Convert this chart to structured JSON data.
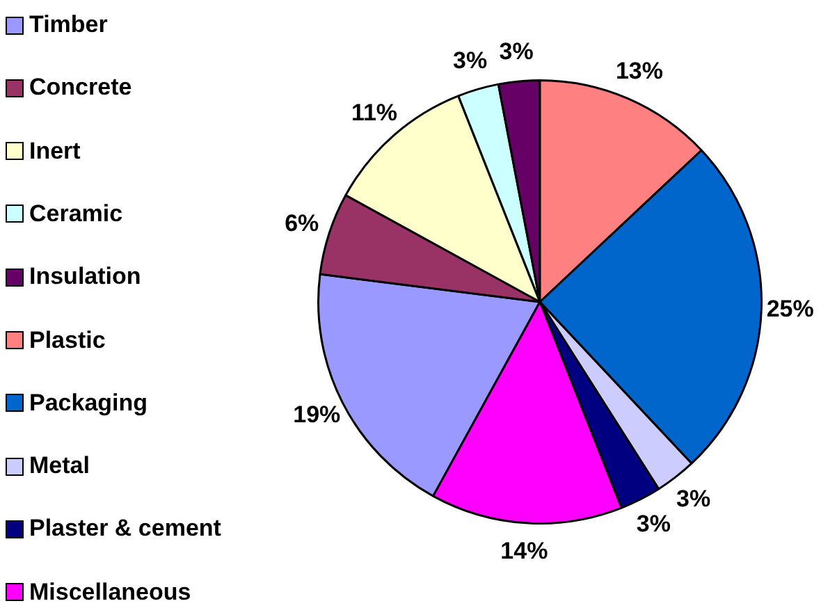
{
  "chart_data": {
    "type": "pie",
    "categories": [
      "Timber",
      "Concrete",
      "Inert",
      "Ceramic",
      "Insulation",
      "Plastic",
      "Packaging",
      "Metal",
      "Plaster & cement",
      "Miscellaneous"
    ],
    "values": [
      19,
      6,
      11,
      3,
      3,
      13,
      25,
      3,
      3,
      14
    ],
    "colors": [
      "#9999ff",
      "#993366",
      "#ffffcc",
      "#ccffff",
      "#660066",
      "#ff8080",
      "#0066cc",
      "#ccccff",
      "#000080",
      "#ff00ff"
    ],
    "value_labels": [
      "19%",
      "6%",
      "11%",
      "3%",
      "3%",
      "13%",
      "25%",
      "3%",
      "3%",
      "14%"
    ],
    "legend": "left"
  }
}
